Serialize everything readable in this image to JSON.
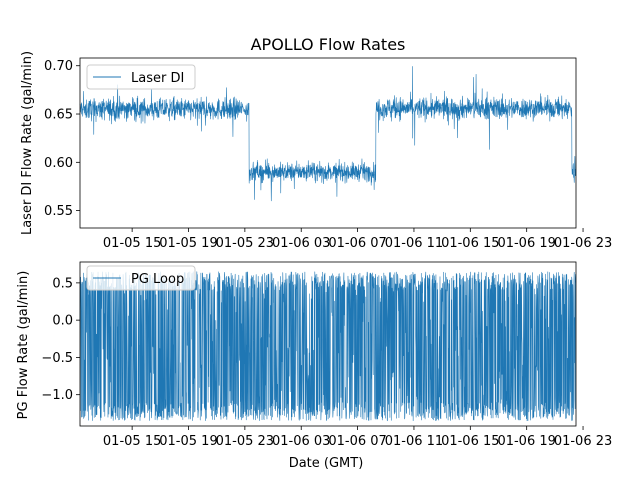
{
  "chart_data": {
    "type": "line",
    "title": "APOLLO Flow Rates",
    "xlabel": "Date (GMT)",
    "x_tick_labels": [
      "01-05 15",
      "01-05 19",
      "01-05 23",
      "01-06 03",
      "01-06 07",
      "01-06 11",
      "01-06 15",
      "01-06 19",
      "01-06 23"
    ],
    "x_tick_hours": [
      15,
      19,
      23,
      27,
      31,
      35,
      39,
      43,
      47
    ],
    "x_range_hours": [
      11.3,
      46.5
    ],
    "color": "#1f77b4",
    "panels": [
      {
        "name": "laser-di",
        "series_name": "Laser DI",
        "ylabel": "Laser DI Flow Rate (gal/min)",
        "ylim": [
          0.532,
          0.708
        ],
        "yticks": [
          0.55,
          0.6,
          0.65,
          0.7
        ],
        "ytick_labels": [
          "0.55",
          "0.60",
          "0.65",
          "0.70"
        ],
        "legend_loc": "upper-left",
        "segments": [
          {
            "start": 11.3,
            "end": 23.3,
            "mean": 0.655,
            "noise": 0.011,
            "spike": 0.025
          },
          {
            "start": 23.3,
            "end": 32.3,
            "mean": 0.59,
            "noise": 0.009,
            "spike": 0.025
          },
          {
            "start": 32.3,
            "end": 46.2,
            "mean": 0.656,
            "noise": 0.011,
            "spike": 0.035
          },
          {
            "start": 46.2,
            "end": 46.5,
            "mean": 0.59,
            "noise": 0.012,
            "spike": 0.02
          }
        ]
      },
      {
        "name": "pg-loop",
        "series_name": "PG Loop",
        "ylabel": "PG Flow Rate (gal/min)",
        "ylim": [
          -1.42,
          0.78
        ],
        "yticks": [
          -1.0,
          -0.5,
          0.0,
          0.5
        ],
        "ytick_labels": [
          "−1.0",
          "−0.5",
          "0.0",
          "0.5"
        ],
        "legend_loc": "upper-left",
        "segments": [
          {
            "start": 11.3,
            "end": 46.5,
            "mean": -0.4,
            "amplitude_low": -1.35,
            "amplitude_high": 0.65
          }
        ]
      }
    ]
  }
}
